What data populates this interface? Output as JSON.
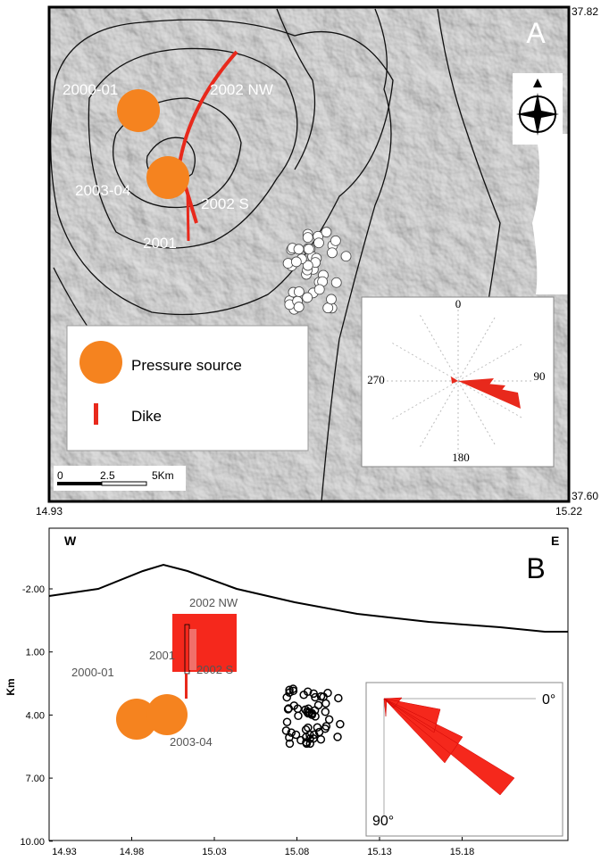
{
  "panel_a": {
    "letter": "A",
    "lat_top": "37.82",
    "lat_bottom": "37.60",
    "lon_left": "14.93",
    "lon_right": "15.22",
    "labels": [
      "2000-01",
      "2002 NW",
      "2003-04",
      "2002 S",
      "2001"
    ],
    "legend": {
      "pressure_source": "Pressure source",
      "dike": "Dike"
    },
    "scale_bar": [
      "0",
      "2.5",
      "5Km"
    ],
    "rose_labels": [
      "0",
      "90",
      "180",
      "270"
    ]
  },
  "panel_b": {
    "letter": "B",
    "west": "W",
    "east": "E",
    "y_axis_label": "Km",
    "y_ticks": [
      "-2.00",
      "1.00",
      "4.00",
      "7.00",
      "10.00"
    ],
    "x_ticks": [
      "14.93",
      "14.98",
      "15.03",
      "15.08",
      "15.13",
      "15.18"
    ],
    "labels": [
      "2002 NW",
      "2001",
      "2002 S",
      "2000-01",
      "2003-04"
    ],
    "rose_labels": [
      "0°",
      "90°"
    ]
  }
}
